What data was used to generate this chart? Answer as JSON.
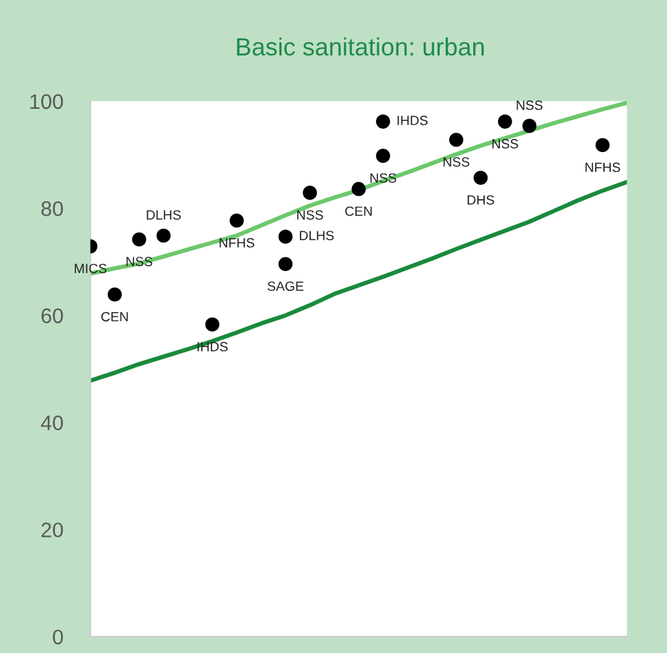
{
  "chart_data": {
    "type": "scatter",
    "title": "Basic sanitation: urban",
    "categories": [
      null,
      null,
      null,
      null,
      null,
      null,
      null,
      null,
      null,
      null,
      null,
      null,
      null,
      null,
      null,
      null,
      null,
      null,
      null,
      null,
      null,
      null,
      null
    ],
    "ylim": [
      0,
      100
    ],
    "yticks": [
      0,
      20,
      40,
      60,
      80,
      100
    ],
    "tick_labels": "y",
    "marker": "circle",
    "series": [
      {
        "color": "#000000",
        "values": [
          72.9,
          63.9,
          74.2,
          74.9,
          null,
          58.3,
          77.7,
          null,
          74.7,
          82.9,
          null,
          83.6,
          96.2,
          null,
          null,
          92.8,
          85.7,
          96.2,
          95.4,
          null,
          null,
          91.8,
          null
        ],
        "value_labels": [
          "MICS",
          "CEN",
          "NSS",
          "DLHS",
          null,
          "IHDS",
          "NFHS",
          null,
          "DLHS",
          "NSS",
          null,
          "CEN",
          "IHDS",
          null,
          null,
          "NSS",
          "DHS",
          "NSS",
          "NSS",
          null,
          null,
          "NFHS",
          null
        ]
      },
      {
        "color": "#000000",
        "values": [
          null,
          null,
          null,
          null,
          null,
          null,
          null,
          null,
          69.6,
          null,
          null,
          null,
          89.8,
          null,
          null,
          null,
          null,
          null,
          null,
          null,
          null,
          null,
          null
        ],
        "value_labels": [
          null,
          null,
          null,
          null,
          null,
          null,
          null,
          null,
          "SAGE",
          null,
          null,
          null,
          "NSS",
          null,
          null,
          null,
          null,
          null,
          null,
          null,
          null,
          null,
          null
        ]
      },
      {
        "type": "line",
        "marker": "none",
        "color": "#6cc86c",
        "values": [
          67.8,
          68.8,
          69.7,
          71.0,
          72.3,
          73.6,
          74.9,
          76.8,
          78.7,
          80.5,
          82.0,
          83.4,
          85.1,
          86.7,
          88.4,
          90.1,
          91.7,
          93.1,
          94.5,
          95.9,
          97.2,
          98.5,
          99.7
        ]
      },
      {
        "type": "line",
        "marker": "none",
        "color": "#1a8a3c",
        "values": [
          47.8,
          49.3,
          50.9,
          52.3,
          53.7,
          55.2,
          56.8,
          58.5,
          60.0,
          61.9,
          64.0,
          65.6,
          67.2,
          68.9,
          70.6,
          72.4,
          74.1,
          75.8,
          77.5,
          79.5,
          81.5,
          83.3,
          84.9
        ]
      }
    ]
  }
}
